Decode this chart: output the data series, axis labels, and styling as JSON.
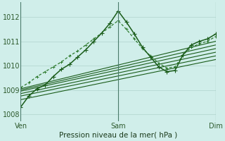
{
  "xlabel": "Pression niveau de la mer( hPa )",
  "xtick_labels": [
    "Ven",
    "Sam",
    "Dim"
  ],
  "xtick_positions": [
    0,
    48,
    96
  ],
  "ylim": [
    1007.7,
    1012.6
  ],
  "yticks": [
    1008,
    1009,
    1010,
    1011,
    1012
  ],
  "bg_color": "#d0eeea",
  "grid_color": "#b0d4cc",
  "line_color_dark": "#1a5c1a",
  "line_color_mid": "#2d7a2d",
  "x_max": 96,
  "s_main_x": [
    0,
    4,
    8,
    12,
    16,
    20,
    24,
    28,
    32,
    36,
    40,
    44,
    48,
    52,
    56,
    60,
    64,
    68,
    72,
    76,
    80,
    84,
    88,
    92,
    96
  ],
  "s_main_y": [
    1008.3,
    1008.75,
    1009.05,
    1009.2,
    1009.55,
    1009.85,
    1010.05,
    1010.35,
    1010.65,
    1011.0,
    1011.35,
    1011.75,
    1012.25,
    1011.8,
    1011.3,
    1010.75,
    1010.35,
    1009.95,
    1009.75,
    1009.8,
    1010.45,
    1010.85,
    1011.0,
    1011.1,
    1011.3
  ],
  "s2_x": [
    0,
    4,
    8,
    12,
    16,
    20,
    24,
    28,
    32,
    36,
    40,
    44,
    48,
    52,
    56,
    60,
    64,
    68,
    72,
    76,
    80,
    84,
    88,
    92,
    96
  ],
  "s2_y": [
    1009.1,
    1009.3,
    1009.55,
    1009.75,
    1009.95,
    1010.15,
    1010.4,
    1010.6,
    1010.85,
    1011.1,
    1011.35,
    1011.6,
    1011.85,
    1011.5,
    1011.1,
    1010.7,
    1010.4,
    1010.1,
    1009.9,
    1009.95,
    1010.45,
    1010.75,
    1010.9,
    1011.0,
    1011.2
  ],
  "smooth_lines": [
    [
      [
        0,
        96
      ],
      [
        1009.05,
        1011.0
      ]
    ],
    [
      [
        0,
        96
      ],
      [
        1009.0,
        1010.85
      ]
    ],
    [
      [
        0,
        96
      ],
      [
        1008.95,
        1010.7
      ]
    ],
    [
      [
        0,
        96
      ],
      [
        1008.85,
        1010.55
      ]
    ],
    [
      [
        0,
        96
      ],
      [
        1008.75,
        1010.4
      ]
    ],
    [
      [
        0,
        96
      ],
      [
        1008.6,
        1010.25
      ]
    ]
  ]
}
